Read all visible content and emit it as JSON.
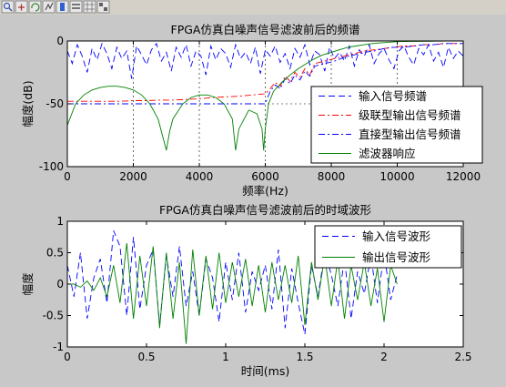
{
  "colors": {
    "figure_bg": "#c8c8c8",
    "axes_bg": "#ffffff",
    "input_series": "#0000ff",
    "cascade_series": "#ff0000",
    "direct_series": "#0000ff",
    "filter_series": "#008000",
    "output_series": "#008000"
  },
  "toolbar": {
    "icons": [
      "zoom-icon",
      "pan-icon",
      "rotate-icon",
      "datacursor-icon",
      "colorbar-icon",
      "legend-icon",
      "grid-icon",
      "tile-icon"
    ]
  },
  "chart_data": [
    {
      "type": "line",
      "title": "FPGA仿真白噪声信号滤波前后的频谱",
      "xlabel": "频率(Hz)",
      "ylabel": "幅度(dB)",
      "xlim": [
        0,
        12000
      ],
      "ylim": [
        -100,
        0
      ],
      "xticks": [
        0,
        2000,
        4000,
        6000,
        8000,
        10000,
        12000
      ],
      "yticks": [
        0,
        -50,
        -100
      ],
      "xtick_labels": [
        "0",
        "2000",
        "4000",
        "6000",
        "8000",
        "10000",
        "12000"
      ],
      "ytick_labels": [
        "0",
        "-50",
        "-100"
      ],
      "grid": true,
      "legend_position": "right",
      "series": [
        {
          "name": "输入信号频谱",
          "style": "dashed",
          "color": "#0000ff",
          "x": [
            0,
            150,
            300,
            450,
            600,
            750,
            900,
            1050,
            1200,
            1350,
            1500,
            1650,
            1800,
            1950,
            2100,
            2250,
            2400,
            2550,
            2700,
            2850,
            3000,
            3150,
            3300,
            3450,
            3600,
            3750,
            3900,
            4050,
            4200,
            4350,
            4500,
            4650,
            4800,
            4950,
            5100,
            5250,
            5400,
            5550,
            5700,
            5850,
            6000,
            6150,
            6300,
            6450,
            6600,
            6750,
            6900,
            7050,
            7200,
            7350,
            7500,
            7650,
            7800,
            7950,
            8100,
            8250,
            8400,
            8550,
            8700,
            8850,
            9000,
            9150,
            9300,
            9450,
            9600,
            9750,
            9900,
            10050,
            10200,
            10350,
            10500,
            10650,
            10800,
            10950,
            11100,
            11250,
            11400,
            11550,
            11700,
            11850,
            12000
          ],
          "y": [
            -8,
            -18,
            -3,
            -12,
            -25,
            -6,
            -15,
            -2,
            -10,
            -22,
            -5,
            -14,
            -8,
            -30,
            -4,
            -11,
            -19,
            -7,
            -2,
            -16,
            -9,
            -24,
            -5,
            -13,
            -3,
            -20,
            -8,
            -12,
            -27,
            -4,
            -15,
            -6,
            -10,
            -21,
            -3,
            -14,
            -9,
            -18,
            -5,
            -26,
            -7,
            -12,
            -4,
            -17,
            -10,
            -22,
            -6,
            -13,
            -3,
            -19,
            -8,
            -11,
            -24,
            -5,
            -14,
            -9,
            -16,
            -4,
            -20,
            -7,
            -12,
            -3,
            -18,
            -10,
            -6,
            -15,
            -22,
            -8,
            -4,
            -13,
            -19,
            -6,
            -11,
            -3,
            -16,
            -9,
            -21,
            -5,
            -14,
            -8,
            -12
          ]
        },
        {
          "name": "级联型输出信号频谱",
          "style": "dashdot",
          "color": "#ff0000",
          "x": [
            0,
            400,
            800,
            1200,
            1600,
            2000,
            2400,
            2800,
            3200,
            3600,
            4000,
            4400,
            4800,
            5200,
            5600,
            6000,
            6150,
            6300,
            6450,
            6600,
            6750,
            6900,
            7050,
            7200,
            7350,
            7500,
            7800,
            8100,
            8400,
            8700,
            9000,
            9300,
            9600,
            9900,
            10200,
            10500,
            10800,
            11100,
            11400,
            11700,
            12000
          ],
          "y": [
            -48,
            -48,
            -48,
            -48,
            -48,
            -47.5,
            -47.5,
            -47,
            -47,
            -46.5,
            -46,
            -45,
            -44.5,
            -44,
            -43,
            -42,
            -38,
            -33,
            -36,
            -28,
            -32,
            -25,
            -29,
            -22,
            -27,
            -18,
            -16,
            -14,
            -12,
            -10,
            -8,
            -7,
            -6,
            -5,
            -4,
            -4,
            -3,
            -3,
            -2,
            -2,
            -2
          ]
        },
        {
          "name": "直接型输出信号频谱",
          "style": "dashdot",
          "color": "#0000ff",
          "x": [
            0,
            400,
            800,
            1200,
            1600,
            2000,
            2400,
            2800,
            3200,
            3600,
            4000,
            4400,
            4800,
            5200,
            5600,
            6000,
            6150,
            6300,
            6450,
            6600,
            6750,
            6900,
            7050,
            7200,
            7350,
            7500,
            7800,
            8100,
            8400,
            8700,
            9000,
            9300,
            9600,
            9900,
            10200,
            10500,
            10800,
            11100,
            11400,
            11700,
            12000
          ],
          "y": [
            -50,
            -50,
            -50,
            -50,
            -50,
            -50,
            -50,
            -50,
            -50,
            -50,
            -50,
            -50,
            -50,
            -50,
            -50,
            -50,
            -40,
            -35,
            -38,
            -30,
            -34,
            -27,
            -31,
            -24,
            -28,
            -20,
            -18,
            -16,
            -13,
            -11,
            -9,
            -8,
            -6,
            -5,
            -5,
            -4,
            -3,
            -3,
            -2,
            -2,
            -2
          ]
        },
        {
          "name": "滤波器响应",
          "style": "solid",
          "color": "#008000",
          "x": [
            0,
            250,
            500,
            750,
            1000,
            1250,
            1500,
            1750,
            2000,
            2250,
            2500,
            2750,
            3000,
            3100,
            3200,
            3500,
            3750,
            4000,
            4250,
            4500,
            4750,
            5000,
            5100,
            5200,
            5500,
            5750,
            5900,
            5950,
            6000,
            6100,
            6250,
            6500,
            6750,
            7000,
            7250,
            7500,
            7750,
            8000,
            8250,
            8500,
            8750,
            9000,
            9250,
            9500,
            9750,
            10000,
            10500,
            11000,
            11500,
            12000
          ],
          "y": [
            -67,
            -50,
            -43,
            -39,
            -37,
            -36,
            -36,
            -37,
            -39,
            -43,
            -50,
            -62,
            -87,
            -72,
            -62,
            -50,
            -45,
            -43,
            -43,
            -45,
            -50,
            -62,
            -87,
            -70,
            -55,
            -58,
            -70,
            -87,
            -70,
            -50,
            -40,
            -33,
            -27,
            -22,
            -18,
            -14,
            -11,
            -9,
            -7,
            -5,
            -4,
            -3,
            -2,
            -1.5,
            -1,
            -0.5,
            -0.3,
            -0.2,
            -0.1,
            0
          ]
        }
      ]
    },
    {
      "type": "line",
      "title": "FPGA仿真白噪声信号滤波前后的时域波形",
      "xlabel": "时间(ms)",
      "ylabel": "幅度",
      "xlim": [
        0,
        2.5
      ],
      "ylim": [
        -1,
        1
      ],
      "xticks": [
        0,
        0.5,
        1,
        1.5,
        2,
        2.5
      ],
      "yticks": [
        1,
        0.5,
        0,
        -0.5,
        -1
      ],
      "xtick_labels": [
        "0",
        "0.5",
        "1",
        "1.5",
        "2",
        "2.5"
      ],
      "ytick_labels": [
        "1",
        "0.5",
        "0",
        "-0.5",
        "-1"
      ],
      "grid": false,
      "legend_position": "top-right",
      "series": [
        {
          "name": "输入信号波形",
          "style": "dashed",
          "color": "#0000ff",
          "x": [
            0,
            0.042,
            0.083,
            0.125,
            0.167,
            0.208,
            0.25,
            0.292,
            0.333,
            0.375,
            0.417,
            0.458,
            0.5,
            0.542,
            0.583,
            0.625,
            0.667,
            0.708,
            0.75,
            0.792,
            0.833,
            0.875,
            0.917,
            0.958,
            1.0,
            1.042,
            1.083,
            1.125,
            1.167,
            1.208,
            1.25,
            1.292,
            1.333,
            1.375,
            1.417,
            1.458,
            1.5,
            1.542,
            1.583,
            1.625,
            1.667,
            1.708,
            1.75,
            1.792,
            1.833,
            1.875,
            1.917,
            1.958,
            2.0,
            2.042,
            2.083
          ],
          "y": [
            0.3,
            -0.2,
            0.5,
            -0.55,
            0.1,
            0.4,
            -0.3,
            0.85,
            0.6,
            -0.5,
            0.75,
            -0.4,
            0.3,
            0.55,
            -0.65,
            0.45,
            -0.2,
            0.6,
            -0.35,
            0.2,
            -0.5,
            0.4,
            0.1,
            -0.6,
            0.35,
            -0.25,
            0.5,
            -0.45,
            0.2,
            -0.1,
            0.3,
            -0.4,
            0.55,
            -0.7,
            0.25,
            -0.3,
            -0.8,
            0.3,
            -0.2,
            0.5,
            0.15,
            -0.35,
            0.4,
            -0.55,
            0.2,
            -0.15,
            0.45,
            -0.3,
            0.5,
            -0.25,
            0.15
          ]
        },
        {
          "name": "输出信号波形",
          "style": "solid",
          "color": "#008000",
          "x": [
            0,
            0.042,
            0.083,
            0.125,
            0.167,
            0.208,
            0.25,
            0.292,
            0.333,
            0.375,
            0.417,
            0.458,
            0.5,
            0.542,
            0.583,
            0.625,
            0.667,
            0.708,
            0.75,
            0.792,
            0.833,
            0.875,
            0.917,
            0.958,
            1.0,
            1.042,
            1.083,
            1.125,
            1.167,
            1.208,
            1.25,
            1.292,
            1.333,
            1.375,
            1.417,
            1.458,
            1.5,
            1.542,
            1.583,
            1.625,
            1.667,
            1.708,
            1.75,
            1.792,
            1.833,
            1.875,
            1.917,
            1.958,
            2.0,
            2.042,
            2.083
          ],
          "y": [
            0.0,
            0.0,
            -0.05,
            0.05,
            -0.1,
            0.1,
            -0.2,
            0.3,
            -0.3,
            0.65,
            -0.55,
            0.45,
            -0.35,
            0.6,
            -0.7,
            0.5,
            -0.55,
            0.35,
            -0.95,
            0.55,
            -0.5,
            0.45,
            -0.4,
            0.5,
            -0.3,
            0.35,
            -0.2,
            0.4,
            -0.35,
            0.3,
            -0.45,
            0.35,
            -0.25,
            0.3,
            -0.3,
            0.45,
            -0.65,
            0.35,
            -0.25,
            0.45,
            -0.35,
            0.4,
            -0.55,
            0.3,
            -0.25,
            0.35,
            -0.35,
            0.25,
            -0.6,
            0.3,
            0.0
          ]
        }
      ]
    }
  ]
}
